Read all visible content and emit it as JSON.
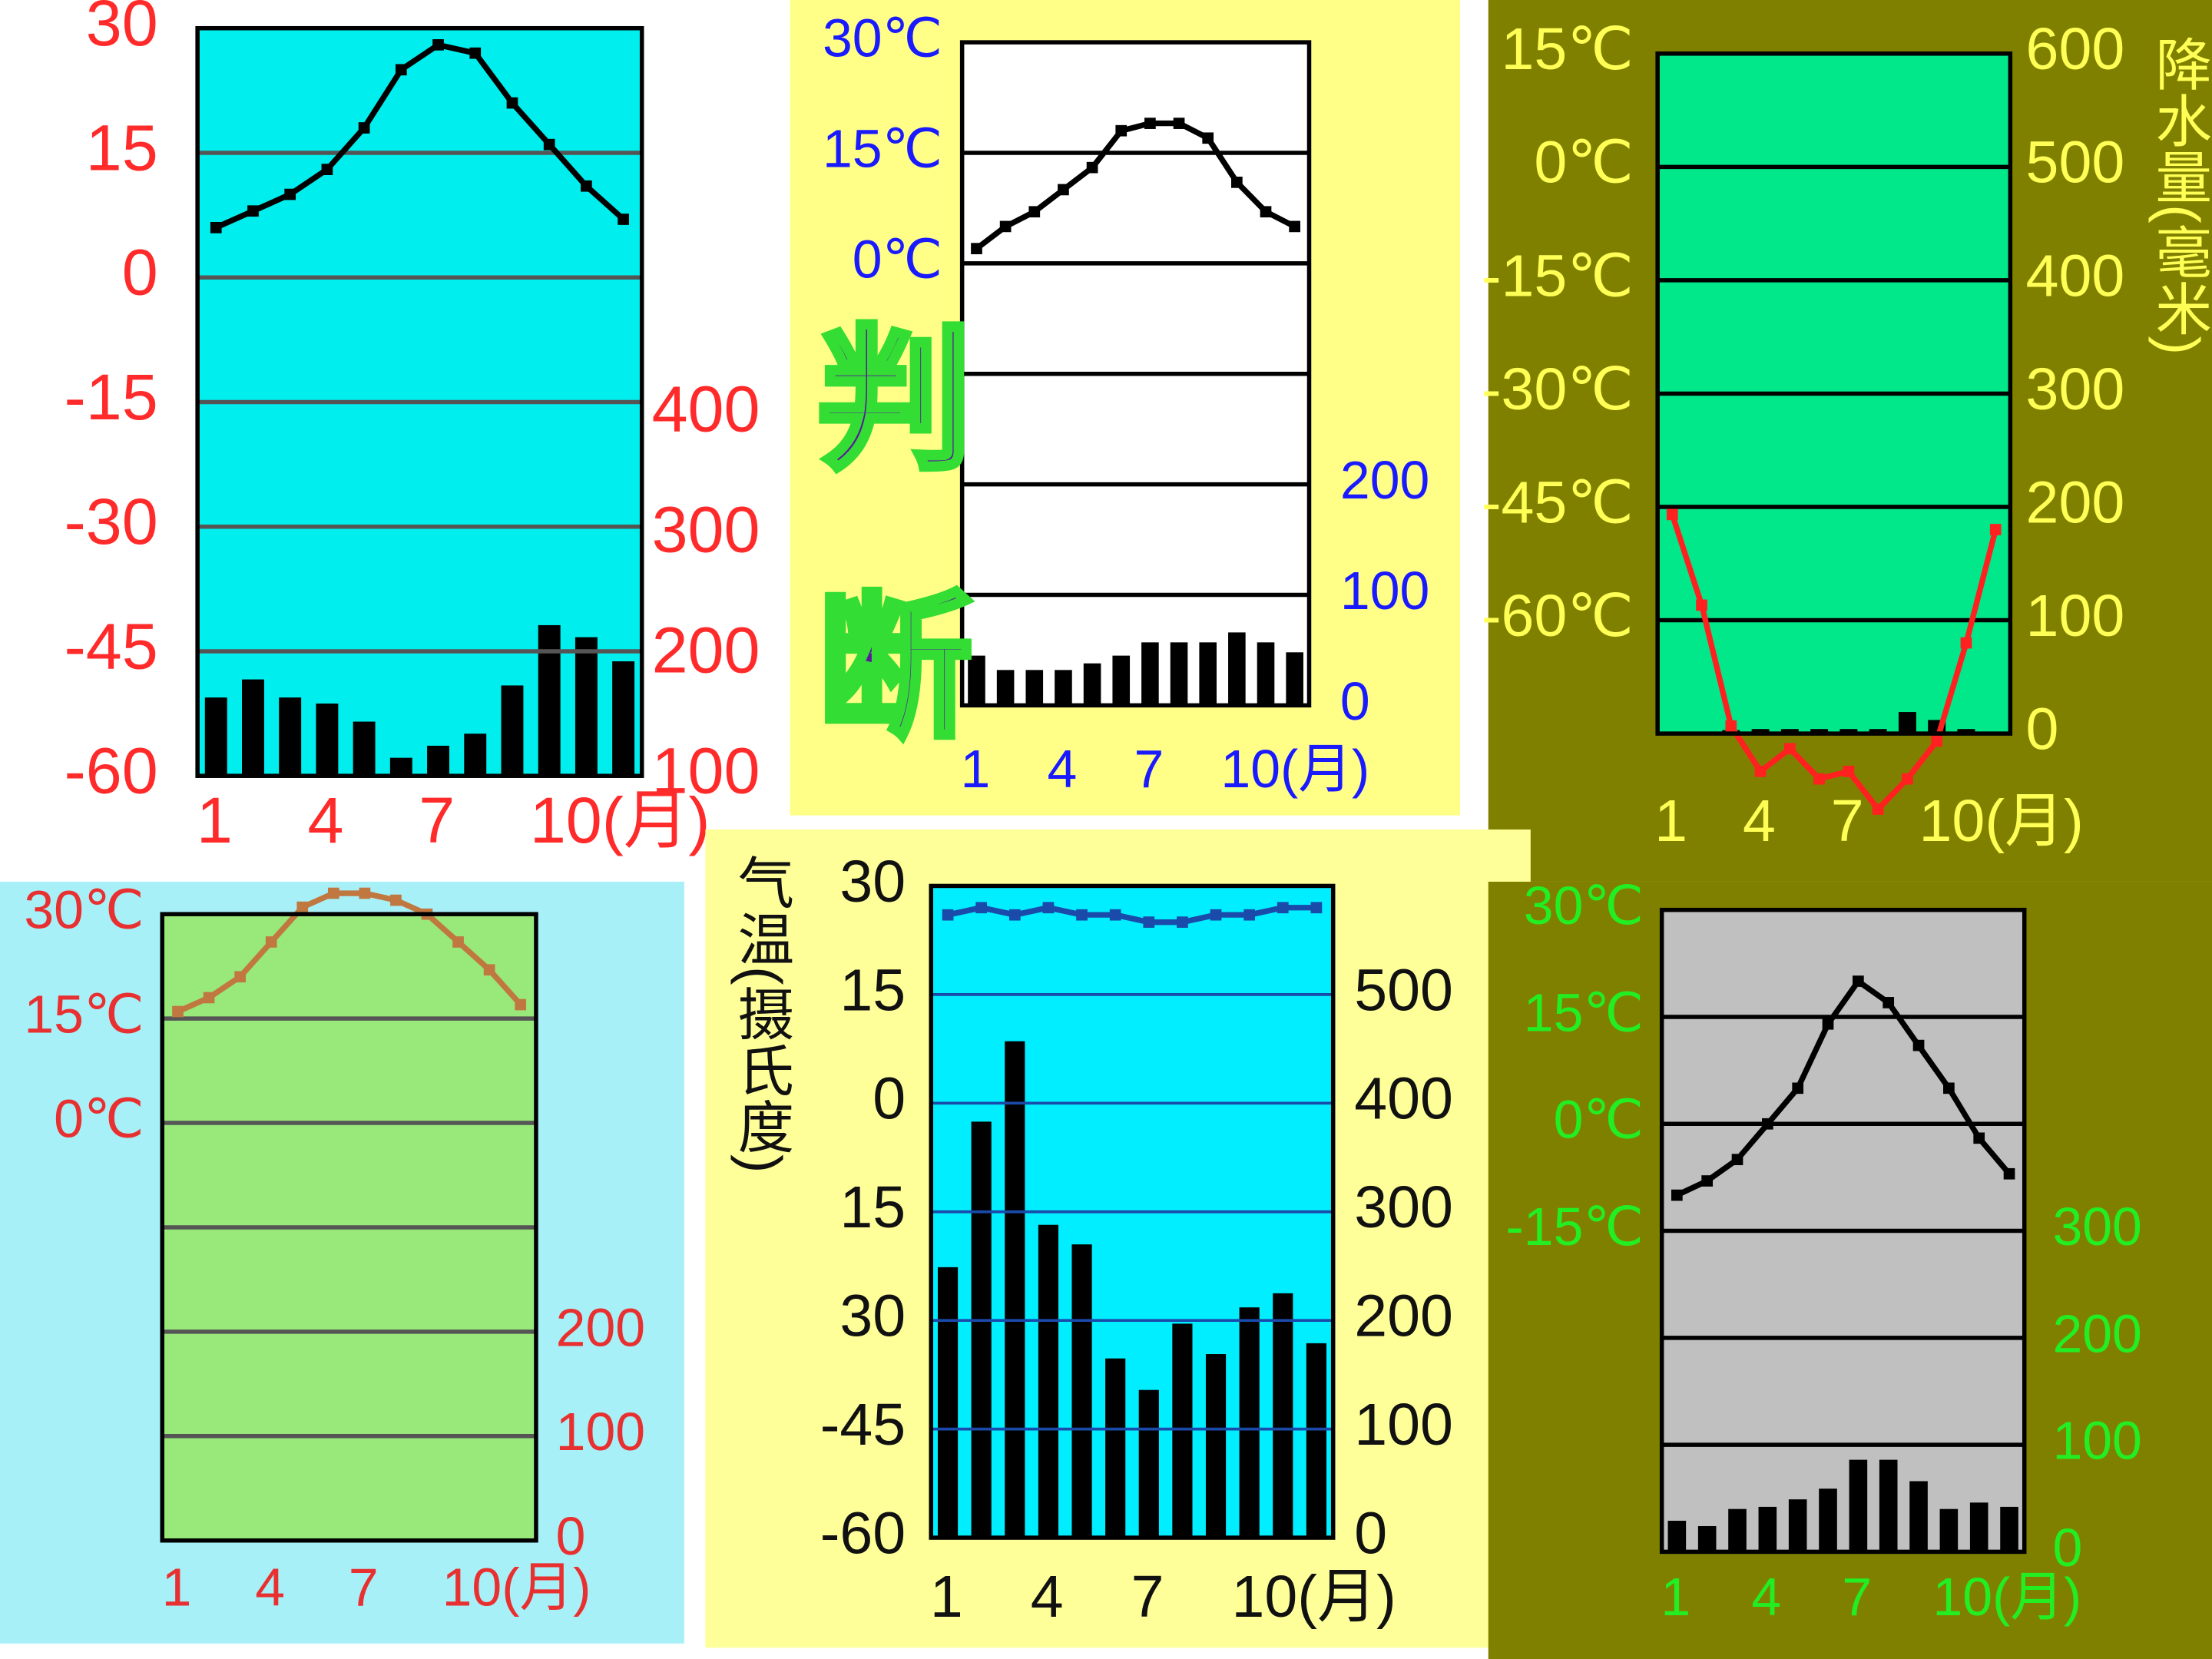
{
  "chart_data": [
    {
      "type": "combo",
      "ylim": [
        -60,
        30
      ],
      "yticks": [
        30,
        15,
        0,
        -15,
        -30,
        -45,
        -60
      ],
      "ygrid": [
        15,
        0,
        -15,
        -30,
        -45
      ],
      "y2lim": [
        100,
        720
      ],
      "y2ticks": [
        400,
        300,
        200,
        100
      ],
      "categories": [
        "1",
        null,
        null,
        "4",
        null,
        null,
        "7",
        null,
        null,
        "10(月)",
        null,
        null
      ],
      "series": [
        {
          "type": "bar",
          "axis": "y2",
          "color": "#000000",
          "values": [
            165,
            180,
            165,
            160,
            145,
            115,
            125,
            135,
            175,
            225,
            215,
            195
          ]
        },
        {
          "type": "line",
          "color": "#000000",
          "values": [
            6,
            8,
            10,
            13,
            18,
            25,
            28,
            27,
            21,
            16,
            11,
            7
          ]
        }
      ]
    },
    {
      "type": "combo",
      "annotation": "判断",
      "ylim": [
        -60,
        30
      ],
      "yticks": [
        {
          "value": 30,
          "label": "30℃"
        },
        {
          "value": 15,
          "label": "15℃"
        },
        {
          "value": 0,
          "label": "0℃"
        }
      ],
      "ygrid": [
        15,
        0,
        -15,
        -30,
        -45
      ],
      "y2lim": [
        0,
        600
      ],
      "y2ticks": [
        200,
        100,
        0
      ],
      "categories": [
        "1",
        null,
        null,
        "4",
        null,
        null,
        "7",
        null,
        null,
        "10(月)",
        null,
        null
      ],
      "series": [
        {
          "type": "bar",
          "axis": "y2",
          "color": "#000000",
          "values": [
            45,
            32,
            32,
            32,
            38,
            45,
            57,
            57,
            57,
            66,
            57,
            48
          ]
        },
        {
          "type": "line",
          "color": "#000000",
          "values": [
            2,
            5,
            7,
            10,
            13,
            18,
            19,
            19,
            17,
            11,
            7,
            5
          ]
        }
      ]
    },
    {
      "type": "combo",
      "y2label": "降水量(毫米)",
      "ylim": [
        -75,
        15
      ],
      "yticks": [
        {
          "value": 15,
          "label": "15℃"
        },
        {
          "value": 0,
          "label": "0℃"
        },
        {
          "value": -15,
          "label": "-15℃"
        },
        {
          "value": -30,
          "label": "-30℃"
        },
        {
          "value": -45,
          "label": "-45℃"
        },
        {
          "value": -60,
          "label": "-60℃"
        }
      ],
      "ygrid": [
        0,
        -15,
        -30,
        -45,
        -60
      ],
      "y2lim": [
        0,
        600
      ],
      "y2ticks": [
        600,
        500,
        400,
        300,
        200,
        100,
        0
      ],
      "categories": [
        "1",
        null,
        null,
        "4",
        null,
        null,
        "7",
        null,
        null,
        "10(月)",
        null,
        null
      ],
      "series": [
        {
          "type": "bar",
          "axis": "y2",
          "color": "#000000",
          "values": [
            0,
            0,
            3,
            4,
            4,
            4,
            4,
            4,
            19,
            12,
            4,
            0
          ]
        },
        {
          "type": "line",
          "color": "#ff2020",
          "values": [
            -46,
            -58,
            -74,
            -80,
            -77,
            -81,
            -80,
            -85,
            -81,
            -76,
            -63,
            -48
          ]
        }
      ]
    },
    {
      "type": "combo",
      "ylim": [
        -60,
        30
      ],
      "yticks": [
        {
          "value": 30,
          "label": "30℃"
        },
        {
          "value": 15,
          "label": "15℃"
        },
        {
          "value": 0,
          "label": "0℃"
        }
      ],
      "ygrid": [
        15,
        0,
        -15,
        -30,
        -45
      ],
      "y2lim": [
        0,
        600
      ],
      "y2ticks": [
        200,
        100,
        0
      ],
      "categories": [
        "1",
        null,
        null,
        "4",
        null,
        null,
        "7",
        null,
        null,
        "10(月)",
        null,
        null
      ],
      "series": [
        {
          "type": "line",
          "color": "#c07840",
          "values": [
            16,
            18,
            21,
            26,
            31,
            33,
            33,
            32,
            30,
            26,
            22,
            17
          ]
        }
      ]
    },
    {
      "type": "combo",
      "ylabel": "气温(摄氏度)",
      "ylim": [
        -60,
        30
      ],
      "yticks": [
        30,
        15,
        0,
        {
          "value": -15,
          "label": "15"
        },
        {
          "value": -30,
          "label": "30"
        },
        -45,
        -60
      ],
      "ygrid": [
        15,
        0,
        -15,
        -30,
        -45
      ],
      "y2lim": [
        0,
        600
      ],
      "y2ticks": [
        500,
        400,
        300,
        200,
        100,
        0
      ],
      "categories": [
        "1",
        null,
        null,
        "4",
        null,
        null,
        "7",
        null,
        null,
        "10(月)",
        null,
        null
      ],
      "series": [
        {
          "type": "bar",
          "axis": "y2",
          "color": "#000000",
          "values": [
            249,
            383,
            457,
            288,
            270,
            165,
            136,
            197,
            169,
            212,
            225,
            179
          ]
        },
        {
          "type": "line",
          "color": "#1a4aaa",
          "values": [
            26,
            27,
            26,
            27,
            26,
            26,
            25,
            25,
            26,
            26,
            27,
            27
          ]
        }
      ]
    },
    {
      "type": "combo",
      "ylim": [
        -60,
        30
      ],
      "yticks": [
        {
          "value": 30,
          "label": "30℃"
        },
        {
          "value": 15,
          "label": "15℃"
        },
        {
          "value": 0,
          "label": "0℃"
        },
        {
          "value": -15,
          "label": "-15℃"
        }
      ],
      "ygrid": [
        15,
        0,
        -15,
        -30,
        -45
      ],
      "y2lim": [
        0,
        600
      ],
      "y2ticks": [
        300,
        200,
        100,
        0
      ],
      "categories": [
        "1",
        null,
        null,
        "4",
        null,
        null,
        "7",
        null,
        null,
        "10(月)",
        null,
        null
      ],
      "series": [
        {
          "type": "bar",
          "axis": "y2",
          "color": "#000000",
          "values": [
            29,
            24,
            40,
            42,
            49,
            59,
            86,
            86,
            66,
            40,
            46,
            42
          ]
        },
        {
          "type": "line",
          "color": "#000000",
          "values": [
            -10,
            -8,
            -5,
            0,
            5,
            14,
            20,
            17,
            11,
            5,
            -2,
            -7
          ]
        }
      ]
    }
  ]
}
